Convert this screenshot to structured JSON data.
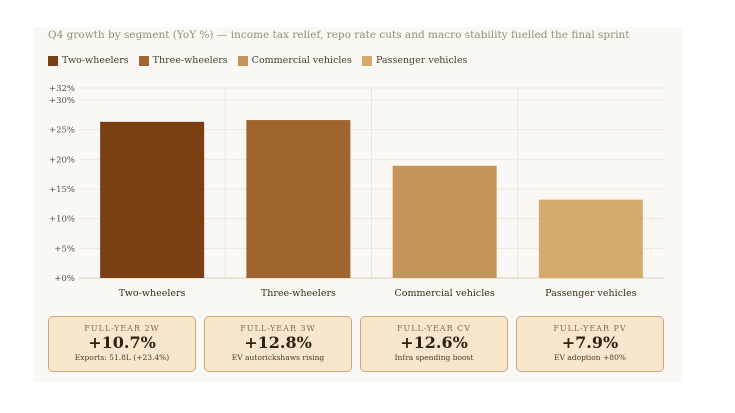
{
  "chart_data": {
    "type": "bar",
    "title": "Q4 growth by segment (YoY %) — income tax relief, repo rate cuts and macro stability fuelled the final sprint",
    "categories": [
      "Two-wheelers",
      "Three-wheelers",
      "Commercial vehicles",
      "Passenger vehicles"
    ],
    "values": [
      26.3,
      26.6,
      18.9,
      13.2
    ],
    "colors": [
      "#7a3f12",
      "#a0642e",
      "#c4955a",
      "#d6aa6c"
    ],
    "legend": [
      "Two-wheelers",
      "Three-wheelers",
      "Commercial vehicles",
      "Passenger vehicles"
    ],
    "legend_position": "top-left",
    "ylim": [
      0,
      32
    ],
    "yticks": [
      {
        "value": 0,
        "label": "+0%"
      },
      {
        "value": 5,
        "label": "+5%"
      },
      {
        "value": 10,
        "label": "+10%"
      },
      {
        "value": 15,
        "label": "+15%"
      },
      {
        "value": 20,
        "label": "+20%"
      },
      {
        "value": 25,
        "label": "+25%"
      },
      {
        "value": 30,
        "label": "+30%"
      },
      {
        "value": 32,
        "label": "+32%"
      }
    ],
    "grid": true,
    "xlabel": "",
    "ylabel": ""
  },
  "cards": [
    {
      "label": "FULL-YEAR 2W",
      "value": "+10.7%",
      "note": "Exports: 51.8L (+23.4%)"
    },
    {
      "label": "FULL-YEAR 3W",
      "value": "+12.8%",
      "note": "EV autorickshaws rising"
    },
    {
      "label": "FULL-YEAR CV",
      "value": "+12.6%",
      "note": "Infra spending boost"
    },
    {
      "label": "FULL-YEAR PV",
      "value": "+7.9%",
      "note": "EV adoption +80%"
    }
  ]
}
